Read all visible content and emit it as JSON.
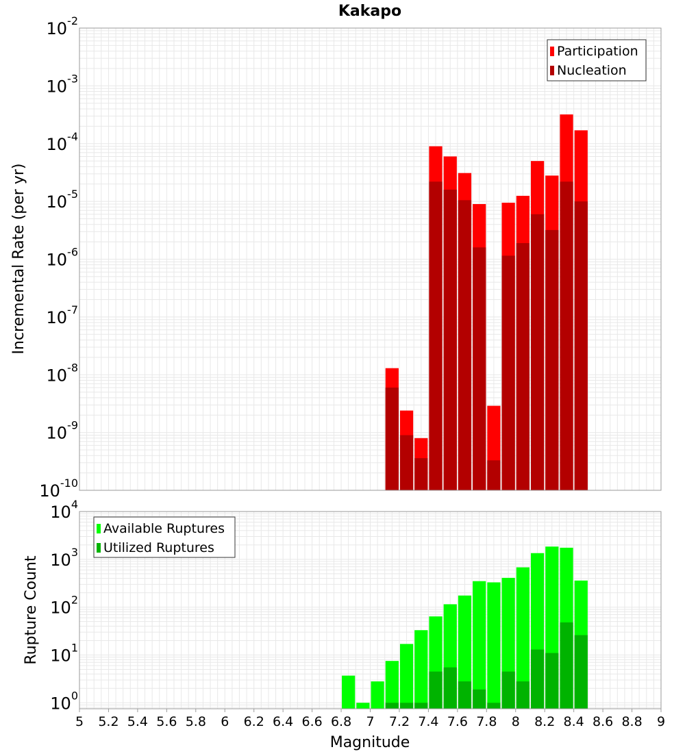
{
  "title": "Kakapo",
  "chart_data": [
    {
      "type": "bar",
      "title": "Kakapo",
      "xlabel": "Magnitude",
      "ylabel": "Incremental Rate (per yr)",
      "xlim": [
        5,
        9
      ],
      "ylim": [
        1e-10,
        0.01
      ],
      "yscale": "log",
      "grid": true,
      "legend_position": "top-right",
      "x_ticks": [
        "5",
        "5.2",
        "5.4",
        "5.6",
        "5.8",
        "6",
        "6.2",
        "6.4",
        "6.6",
        "6.8",
        "7",
        "7.2",
        "7.4",
        "7.6",
        "7.8",
        "8",
        "8.2",
        "8.4",
        "8.6",
        "8.8",
        "9"
      ],
      "y_ticks": [
        {
          "base": "10",
          "exp": "-2"
        },
        {
          "base": "10",
          "exp": "-3"
        },
        {
          "base": "10",
          "exp": "-4"
        },
        {
          "base": "10",
          "exp": "-5"
        },
        {
          "base": "10",
          "exp": "-6"
        },
        {
          "base": "10",
          "exp": "-7"
        },
        {
          "base": "10",
          "exp": "-8"
        },
        {
          "base": "10",
          "exp": "-9"
        },
        {
          "base": "10",
          "exp": "-10"
        }
      ],
      "bin_width": 0.1,
      "x": [
        7.15,
        7.25,
        7.35,
        7.45,
        7.55,
        7.65,
        7.75,
        7.85,
        7.95,
        8.05,
        8.15,
        8.25,
        8.35,
        8.45
      ],
      "series": [
        {
          "name": "Participation",
          "color": "#ff0000",
          "values": [
            1.3e-08,
            2.4e-09,
            8e-10,
            9e-05,
            6e-05,
            3.1e-05,
            9e-06,
            2.9e-09,
            9.5e-06,
            1.25e-05,
            5e-05,
            2.8e-05,
            0.00032,
            0.00017
          ]
        },
        {
          "name": "Nucleation",
          "color": "#b30000",
          "values": [
            6e-09,
            9e-10,
            3.6e-10,
            2.2e-05,
            1.6e-05,
            1.05e-05,
            1.6e-06,
            3.3e-10,
            1.15e-06,
            1.9e-06,
            6e-06,
            3.2e-06,
            2.2e-05,
            1e-05
          ]
        }
      ]
    },
    {
      "type": "bar",
      "xlabel": "Magnitude",
      "ylabel": "Rupture Count",
      "xlim": [
        5,
        9
      ],
      "ylim": [
        0.75,
        10000
      ],
      "yscale": "log",
      "grid": true,
      "legend_position": "top-left",
      "y_ticks": [
        {
          "base": "10",
          "exp": "4"
        },
        {
          "base": "10",
          "exp": "3"
        },
        {
          "base": "10",
          "exp": "2"
        },
        {
          "base": "10",
          "exp": "1"
        },
        {
          "base": "10",
          "exp": "0"
        }
      ],
      "bin_width": 0.1,
      "x": [
        6.85,
        6.95,
        7.05,
        7.15,
        7.25,
        7.35,
        7.45,
        7.55,
        7.65,
        7.75,
        7.85,
        7.95,
        8.05,
        8.15,
        8.25,
        8.35,
        8.45
      ],
      "series": [
        {
          "name": "Available Ruptures",
          "color": "#00ff00",
          "values": [
            3.7,
            1,
            2.8,
            7.5,
            17,
            33,
            64,
            115,
            175,
            350,
            330,
            410,
            680,
            1350,
            1850,
            1750,
            360
          ]
        },
        {
          "name": "Utilized Ruptures",
          "color": "#00b300",
          "values": [
            0,
            0,
            0,
            1,
            1,
            1,
            4.5,
            5.5,
            2.8,
            1.9,
            1,
            4.5,
            2.8,
            13,
            11,
            48,
            26
          ]
        }
      ]
    }
  ]
}
